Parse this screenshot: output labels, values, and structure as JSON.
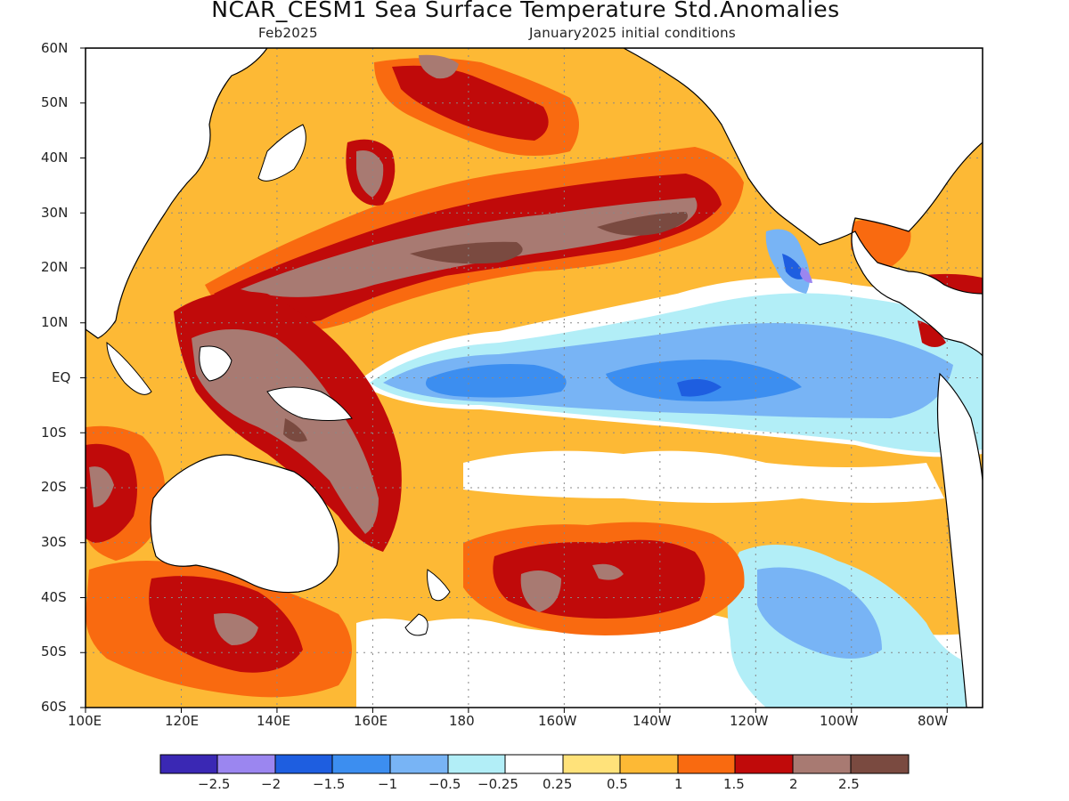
{
  "map": {
    "title": "NCAR_CESM1 Sea Surface Temperature Std.Anomalies",
    "valid_month": "Feb2025",
    "init_text": "January2025 initial conditions",
    "lat_labels": [
      "60N",
      "50N",
      "40N",
      "30N",
      "20N",
      "10N",
      "EQ",
      "10S",
      "20S",
      "30S",
      "40S",
      "50S",
      "60S"
    ],
    "lon_labels": [
      "100E",
      "120E",
      "140E",
      "160E",
      "180",
      "160W",
      "140W",
      "120W",
      "100W",
      "80W"
    ],
    "colorbar": {
      "colors": [
        "#3a28b4",
        "#9b86f0",
        "#1e5ee0",
        "#3c8ef0",
        "#78b4f5",
        "#b2eef7",
        "#ffffff",
        "#ffe27a",
        "#fdb935",
        "#f96a10",
        "#c00a0a",
        "#a87a72",
        "#7a4a40"
      ],
      "labels": [
        "-2.5",
        "-2",
        "-1.5",
        "-1",
        "-0.5",
        "-0.25",
        "0.25",
        "0.5",
        "1",
        "1.5",
        "2",
        "2.5"
      ]
    },
    "palette": {
      "neg3": "#3a28b4",
      "neg25": "#9b86f0",
      "neg2": "#1e5ee0",
      "neg15": "#3c8ef0",
      "neg1": "#78b4f5",
      "neg05": "#b2eef7",
      "zero": "#ffffff",
      "pos025": "#ffe27a",
      "pos05": "#fdb935",
      "pos1": "#f96a10",
      "pos15": "#c00a0a",
      "pos2": "#a87a72",
      "pos25": "#7a4a40"
    }
  }
}
